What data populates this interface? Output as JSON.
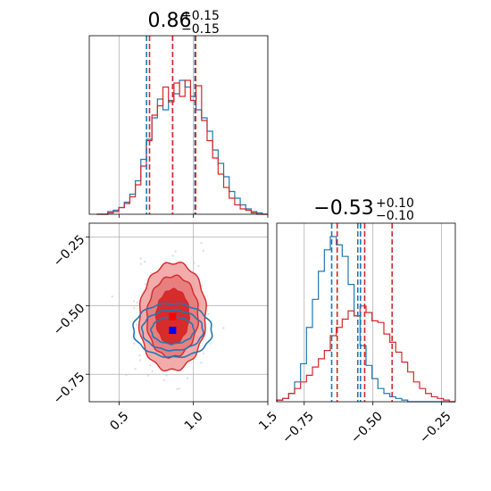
{
  "chart_data": {
    "type": "corner",
    "colors": {
      "series_a": "#1f77b4",
      "series_b": "#d62728",
      "marker_a": "#0000ff",
      "marker_b": "#ff0000"
    },
    "series": [
      {
        "key": "a",
        "color": "#1f77b4"
      },
      {
        "key": "b",
        "color": "#d62728"
      }
    ],
    "parameters": [
      {
        "title": {
          "value": "0.86",
          "plus": "+0.15",
          "minus": "−0.15"
        },
        "range": [
          0.3,
          1.5
        ],
        "ticks": [
          0.5,
          1.0,
          1.5
        ],
        "tick_labels": [
          "0.5",
          "1.0",
          "1.5"
        ],
        "quantiles": {
          "a": [
            0.685,
            0.86,
            1.01
          ],
          "b": [
            0.705,
            0.86,
            1.015
          ]
        }
      },
      {
        "title": {
          "value": "−0.53",
          "plus": "+0.10",
          "minus": "−0.10"
        },
        "range": [
          -0.85,
          -0.2
        ],
        "ticks": [
          -0.75,
          -0.5,
          -0.25
        ],
        "tick_labels": [
          "−0.75",
          "−0.50",
          "−0.25"
        ],
        "quantiles": {
          "a": [
            -0.65,
            -0.555,
            -0.545
          ],
          "b": [
            -0.63,
            -0.53,
            -0.43
          ]
        }
      }
    ],
    "hist_1": {
      "a": [
        0,
        0,
        0.02,
        0.03,
        0.05,
        0.09,
        0.15,
        0.25,
        0.41,
        0.56,
        0.72,
        0.86,
        0.78,
        0.85,
        0.9,
        1.0,
        0.95,
        0.88,
        0.78,
        0.72,
        0.62,
        0.48,
        0.38,
        0.28,
        0.17,
        0.12,
        0.07,
        0.04,
        0.02,
        0.01,
        0
      ],
      "b": [
        0,
        0,
        0.01,
        0.02,
        0.05,
        0.08,
        0.13,
        0.22,
        0.36,
        0.55,
        0.74,
        0.81,
        0.95,
        0.84,
        0.98,
        0.88,
        1.0,
        0.85,
        0.96,
        0.7,
        0.55,
        0.42,
        0.3,
        0.2,
        0.12,
        0.07,
        0.04,
        0.03,
        0.01,
        0,
        0
      ]
    },
    "hist_2": {
      "a": [
        0.01,
        0.02,
        0.05,
        0.12,
        0.23,
        0.45,
        0.62,
        0.79,
        0.92,
        1.0,
        0.95,
        0.88,
        0.71,
        0.52,
        0.34,
        0.22,
        0.14,
        0.08,
        0.05,
        0.03,
        0.02,
        0.01,
        0,
        0,
        0,
        0,
        0,
        0,
        0,
        0
      ],
      "b": [
        0.01,
        0.02,
        0.05,
        0.08,
        0.12,
        0.16,
        0.21,
        0.26,
        0.31,
        0.4,
        0.45,
        0.5,
        0.55,
        0.52,
        0.58,
        0.54,
        0.49,
        0.48,
        0.41,
        0.36,
        0.3,
        0.24,
        0.18,
        0.12,
        0.08,
        0.05,
        0.03,
        0.02,
        0.01,
        0
      ]
    },
    "scatter_2d": {
      "markers": [
        {
          "key": "b",
          "x": 0.86,
          "y": -0.54
        },
        {
          "key": "a",
          "x": 0.86,
          "y": -0.59
        }
      ],
      "contours_b": [
        {
          "cx": 0.86,
          "cy": -0.54,
          "rx": 0.22,
          "ry": 0.2,
          "fill": "#f1a3a3",
          "opacity": 0.9
        },
        {
          "cx": 0.86,
          "cy": -0.54,
          "rx": 0.17,
          "ry": 0.15,
          "fill": "#e57a7a",
          "opacity": 0.9
        },
        {
          "cx": 0.86,
          "cy": -0.54,
          "rx": 0.11,
          "ry": 0.1,
          "fill": "#d62728",
          "opacity": 0.95
        }
      ],
      "contours_a": [
        {
          "cx": 0.86,
          "cy": -0.59,
          "rx": 0.26,
          "ry": 0.1
        },
        {
          "cx": 0.86,
          "cy": -0.59,
          "rx": 0.2,
          "ry": 0.075
        },
        {
          "cx": 0.86,
          "cy": -0.59,
          "rx": 0.14,
          "ry": 0.05
        }
      ]
    }
  }
}
